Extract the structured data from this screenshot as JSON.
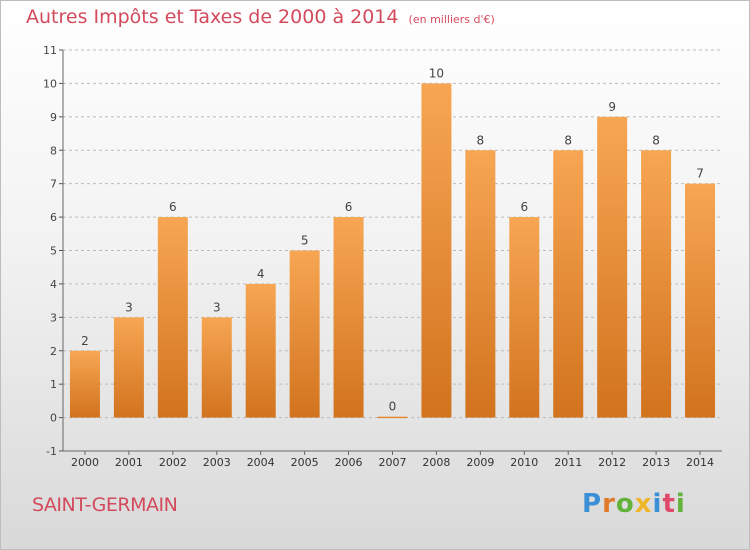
{
  "title": "Autres Impôts et Taxes de 2000 à 2014",
  "unit_note": "(en milliers d'€)",
  "commune": "SAINT-GERMAIN",
  "logo": {
    "text": "Proxiti",
    "letter_colors": [
      "#3b8fd6",
      "#e07b2a",
      "#63b33a",
      "#f0b62a",
      "#3b8fd6",
      "#e04a6a",
      "#63b33a"
    ]
  },
  "colors": {
    "bar_light": "#f7a653",
    "bar_dark": "#d2731e",
    "title": "#d34a5c",
    "grid": "#bcbcbc"
  },
  "chart_data": {
    "type": "bar",
    "categories": [
      "2000",
      "2001",
      "2002",
      "2003",
      "2004",
      "2005",
      "2006",
      "2007",
      "2008",
      "2009",
      "2010",
      "2011",
      "2012",
      "2013",
      "2014"
    ],
    "values": [
      2,
      3,
      6,
      3,
      4,
      5,
      6,
      0,
      10,
      8,
      6,
      8,
      9,
      8,
      7
    ],
    "data_labels": [
      "2",
      "3",
      "6",
      "3",
      "4",
      "5",
      "6",
      "0",
      "10",
      "8",
      "6",
      "8",
      "9",
      "8",
      "7"
    ],
    "yticks": [
      "-1",
      "0",
      "1",
      "2",
      "3",
      "4",
      "5",
      "6",
      "7",
      "8",
      "9",
      "10",
      "11"
    ],
    "ylim": [
      -1,
      11
    ],
    "grid": true,
    "legend": false
  }
}
